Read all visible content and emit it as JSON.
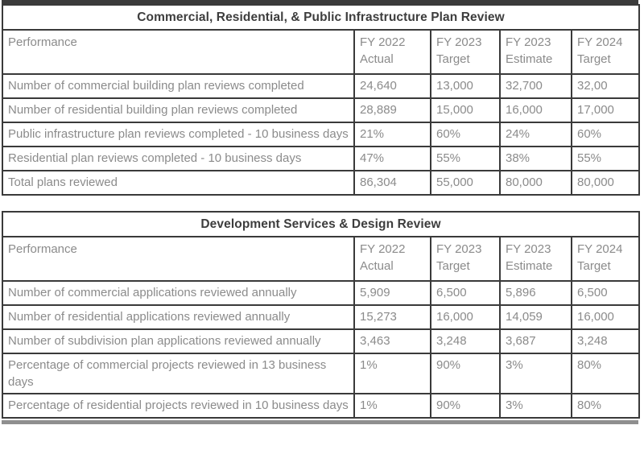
{
  "page": {
    "background": "#ffffff",
    "border_color": "#3a3a3a",
    "body_text_color": "#8b8b8b",
    "title_text_color": "#3d3d3d",
    "top_strip_color": "#3b3b3b",
    "bottom_strip_color": "#8f8f8f"
  },
  "tables": [
    {
      "title": "Commercial, Residential, & Public Infrastructure Plan Review",
      "columns": [
        "Performance",
        "FY 2022\nActual",
        "FY 2023\nTarget",
        "FY 2023\nEstimate",
        "FY 2024\nTarget"
      ],
      "rows": [
        [
          "Number of commercial building plan reviews completed",
          "24,640",
          "13,000",
          "32,700",
          "32,00"
        ],
        [
          "Number of residential building plan reviews completed",
          "28,889",
          "15,000",
          "16,000",
          "17,000"
        ],
        [
          "Public infrastructure plan reviews completed - 10 business days",
          "21%",
          "60%",
          "24%",
          "60%"
        ],
        [
          "Residential plan reviews completed - 10 business days",
          "47%",
          "55%",
          "38%",
          "55%"
        ],
        [
          "Total plans reviewed",
          "86,304",
          "55,000",
          "80,000",
          "80,000"
        ]
      ]
    },
    {
      "title": "Development Services & Design Review",
      "columns": [
        "Performance",
        "FY 2022\nActual",
        "FY 2023\nTarget",
        "FY 2023\nEstimate",
        "FY 2024\nTarget"
      ],
      "rows": [
        [
          "Number of commercial applications reviewed annually",
          "5,909",
          "6,500",
          "5,896",
          "6,500"
        ],
        [
          "Number of residential applications reviewed annually",
          "15,273",
          "16,000",
          "14,059",
          "16,000"
        ],
        [
          "Number of subdivision plan applications reviewed annually",
          "3,463",
          "3,248",
          "3,687",
          "3,248"
        ],
        [
          "Percentage of commercial projects reviewed in 13 business days",
          "1%",
          "90%",
          "3%",
          "80%"
        ],
        [
          "Percentage of residential projects reviewed in 10 business days",
          "1%",
          "90%",
          "3%",
          "80%"
        ]
      ]
    }
  ]
}
